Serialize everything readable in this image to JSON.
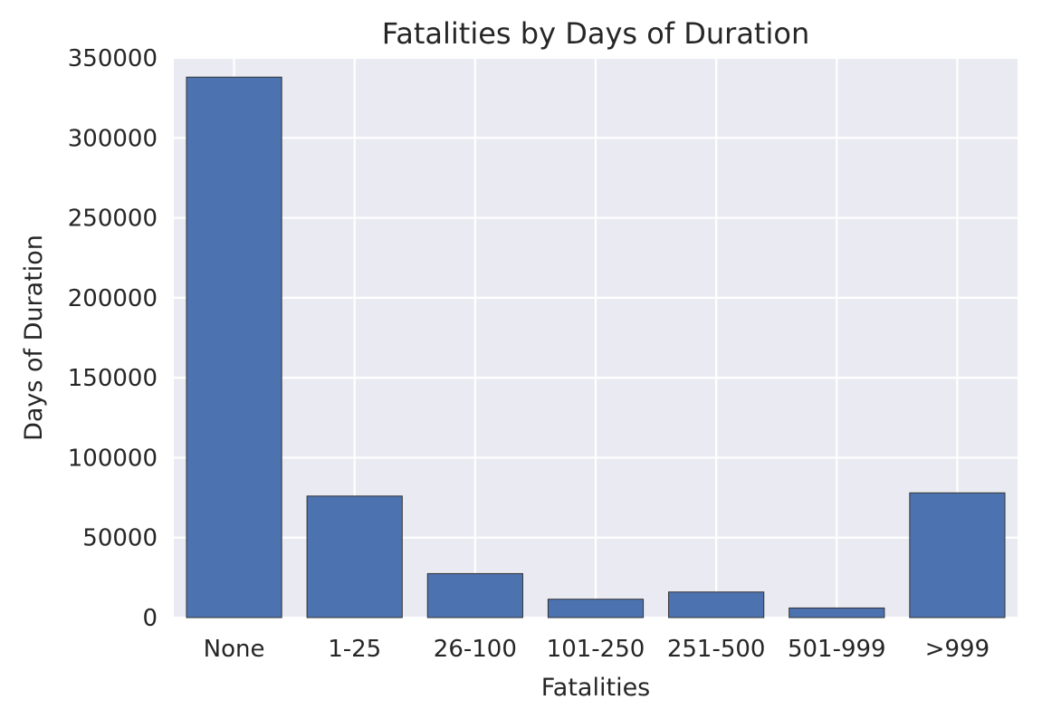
{
  "chart_data": {
    "type": "bar",
    "title": "Fatalities by Days of Duration",
    "xlabel": "Fatalities",
    "ylabel": "Days of Duration",
    "categories": [
      "None",
      "1-25",
      "26-100",
      "101-250",
      "251-500",
      "501-999",
      ">999"
    ],
    "values": [
      338000,
      76000,
      27500,
      11500,
      16000,
      6000,
      78000
    ],
    "ylim": [
      0,
      350000
    ],
    "yticks": [
      0,
      50000,
      100000,
      150000,
      200000,
      250000,
      300000,
      350000
    ],
    "ytick_labels": [
      "0",
      "50000",
      "100000",
      "150000",
      "200000",
      "250000",
      "300000",
      "350000"
    ],
    "grid": true,
    "legend": false,
    "bar_color": "#4c72b0",
    "background_color": "#eaeaf2"
  }
}
